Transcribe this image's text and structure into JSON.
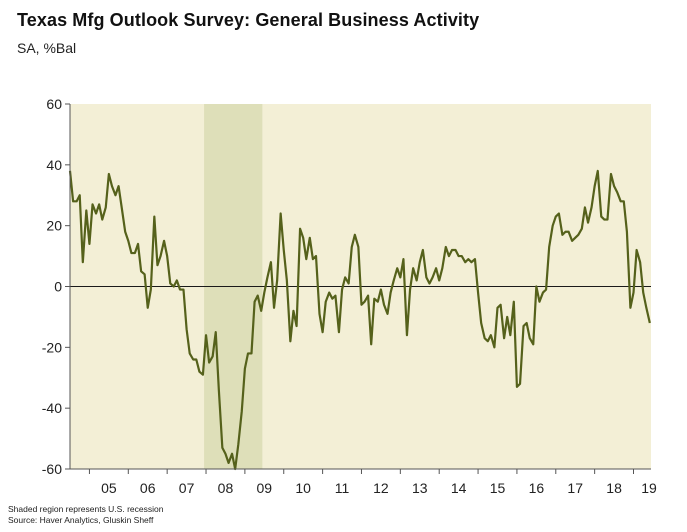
{
  "chart_data": {
    "type": "line",
    "title": "Texas Mfg Outlook Survey: General Business Activity",
    "subtitle": "SA, %Bal",
    "xlabel": "",
    "ylabel": "",
    "ylim": [
      -60,
      60
    ],
    "xlim": [
      2004.5,
      2019.45
    ],
    "yticks": [
      -60,
      -40,
      -20,
      0,
      20,
      40,
      60
    ],
    "xtick_labels": [
      "05",
      "06",
      "07",
      "08",
      "09",
      "10",
      "11",
      "12",
      "13",
      "14",
      "15",
      "16",
      "17",
      "18",
      "19"
    ],
    "grid": false,
    "recession": {
      "start": 2007.95,
      "end": 2009.45
    },
    "colors": {
      "line": "#55611b",
      "plot_bg": "#f3efd6",
      "recession": "#dedfb9",
      "axis": "#555555"
    },
    "series": [
      {
        "name": "General Business Activity",
        "x": [
          2004.5,
          2004.58,
          2004.67,
          2004.75,
          2004.83,
          2004.92,
          2005.0,
          2005.08,
          2005.17,
          2005.25,
          2005.33,
          2005.42,
          2005.5,
          2005.58,
          2005.67,
          2005.75,
          2005.83,
          2005.92,
          2006.0,
          2006.08,
          2006.17,
          2006.25,
          2006.33,
          2006.42,
          2006.5,
          2006.58,
          2006.67,
          2006.75,
          2006.83,
          2006.92,
          2007.0,
          2007.08,
          2007.17,
          2007.25,
          2007.33,
          2007.42,
          2007.5,
          2007.58,
          2007.67,
          2007.75,
          2007.83,
          2007.92,
          2008.0,
          2008.08,
          2008.17,
          2008.25,
          2008.33,
          2008.42,
          2008.5,
          2008.58,
          2008.67,
          2008.75,
          2008.83,
          2008.92,
          2009.0,
          2009.08,
          2009.17,
          2009.25,
          2009.33,
          2009.42,
          2009.5,
          2009.58,
          2009.67,
          2009.75,
          2009.83,
          2009.92,
          2010.0,
          2010.08,
          2010.17,
          2010.25,
          2010.33,
          2010.42,
          2010.5,
          2010.58,
          2010.67,
          2010.75,
          2010.83,
          2010.92,
          2011.0,
          2011.08,
          2011.17,
          2011.25,
          2011.33,
          2011.42,
          2011.5,
          2011.58,
          2011.67,
          2011.75,
          2011.83,
          2011.92,
          2012.0,
          2012.08,
          2012.17,
          2012.25,
          2012.33,
          2012.42,
          2012.5,
          2012.58,
          2012.67,
          2012.75,
          2012.83,
          2012.92,
          2013.0,
          2013.08,
          2013.17,
          2013.25,
          2013.33,
          2013.42,
          2013.5,
          2013.58,
          2013.67,
          2013.75,
          2013.83,
          2013.92,
          2014.0,
          2014.08,
          2014.17,
          2014.25,
          2014.33,
          2014.42,
          2014.5,
          2014.58,
          2014.67,
          2014.75,
          2014.83,
          2014.92,
          2015.0,
          2015.08,
          2015.17,
          2015.25,
          2015.33,
          2015.42,
          2015.5,
          2015.58,
          2015.67,
          2015.75,
          2015.83,
          2015.92,
          2016.0,
          2016.08,
          2016.17,
          2016.25,
          2016.33,
          2016.42,
          2016.5,
          2016.58,
          2016.67,
          2016.75,
          2016.83,
          2016.92,
          2017.0,
          2017.08,
          2017.17,
          2017.25,
          2017.33,
          2017.42,
          2017.5,
          2017.58,
          2017.67,
          2017.75,
          2017.83,
          2017.92,
          2018.0,
          2018.08,
          2018.17,
          2018.25,
          2018.33,
          2018.42,
          2018.5,
          2018.58,
          2018.67,
          2018.75,
          2018.83,
          2018.92,
          2019.0,
          2019.08,
          2019.17,
          2019.25,
          2019.33,
          2019.42
        ],
        "values": [
          38,
          28,
          28,
          30,
          8,
          25,
          14,
          27,
          24,
          27,
          22,
          26,
          37,
          33,
          30,
          33,
          26,
          18,
          15,
          11,
          11,
          14,
          5,
          4,
          -7,
          -1,
          23,
          7,
          10,
          15,
          10,
          1,
          0,
          2,
          -1,
          -1,
          -14,
          -22,
          -24,
          -24,
          -28,
          -29,
          -16,
          -25,
          -23,
          -15,
          -34,
          -53,
          -55,
          -58,
          -55,
          -60,
          -52,
          -41,
          -27,
          -22,
          -22,
          -5,
          -3,
          -8,
          -2,
          3,
          8,
          -7,
          2,
          24,
          12,
          2,
          -18,
          -8,
          -13,
          19,
          16,
          9,
          16,
          9,
          10,
          -9,
          -15,
          -5,
          -2,
          -4,
          -3,
          -15,
          -1,
          3,
          1,
          13,
          17,
          13,
          -6,
          -5,
          -3,
          -19,
          -4,
          -5,
          -1,
          -6,
          -9,
          -2,
          2,
          6,
          3,
          9,
          -16,
          -1,
          6,
          2,
          8,
          12,
          3,
          1,
          3,
          6,
          2,
          6,
          13,
          10,
          12,
          12,
          10,
          10,
          8,
          9,
          8,
          9,
          -2,
          -12,
          -17,
          -18,
          -16,
          -20,
          -7,
          -6,
          -17,
          -10,
          -16,
          -5,
          -33,
          -32,
          -13,
          -12,
          -17,
          -19,
          0,
          -5,
          -2,
          -1,
          13,
          20,
          23,
          24,
          17,
          18,
          18,
          15,
          16,
          17,
          19,
          26,
          21,
          26,
          33,
          38,
          23,
          22,
          22,
          37,
          33,
          31,
          28,
          28,
          18,
          -7,
          -2,
          12,
          8,
          -2,
          -7,
          -12
        ]
      }
    ]
  },
  "footnotes": {
    "recession_note": "Shaded region represents U.S. recession",
    "source": "Source: Haver Analytics, Gluskin Sheff"
  }
}
